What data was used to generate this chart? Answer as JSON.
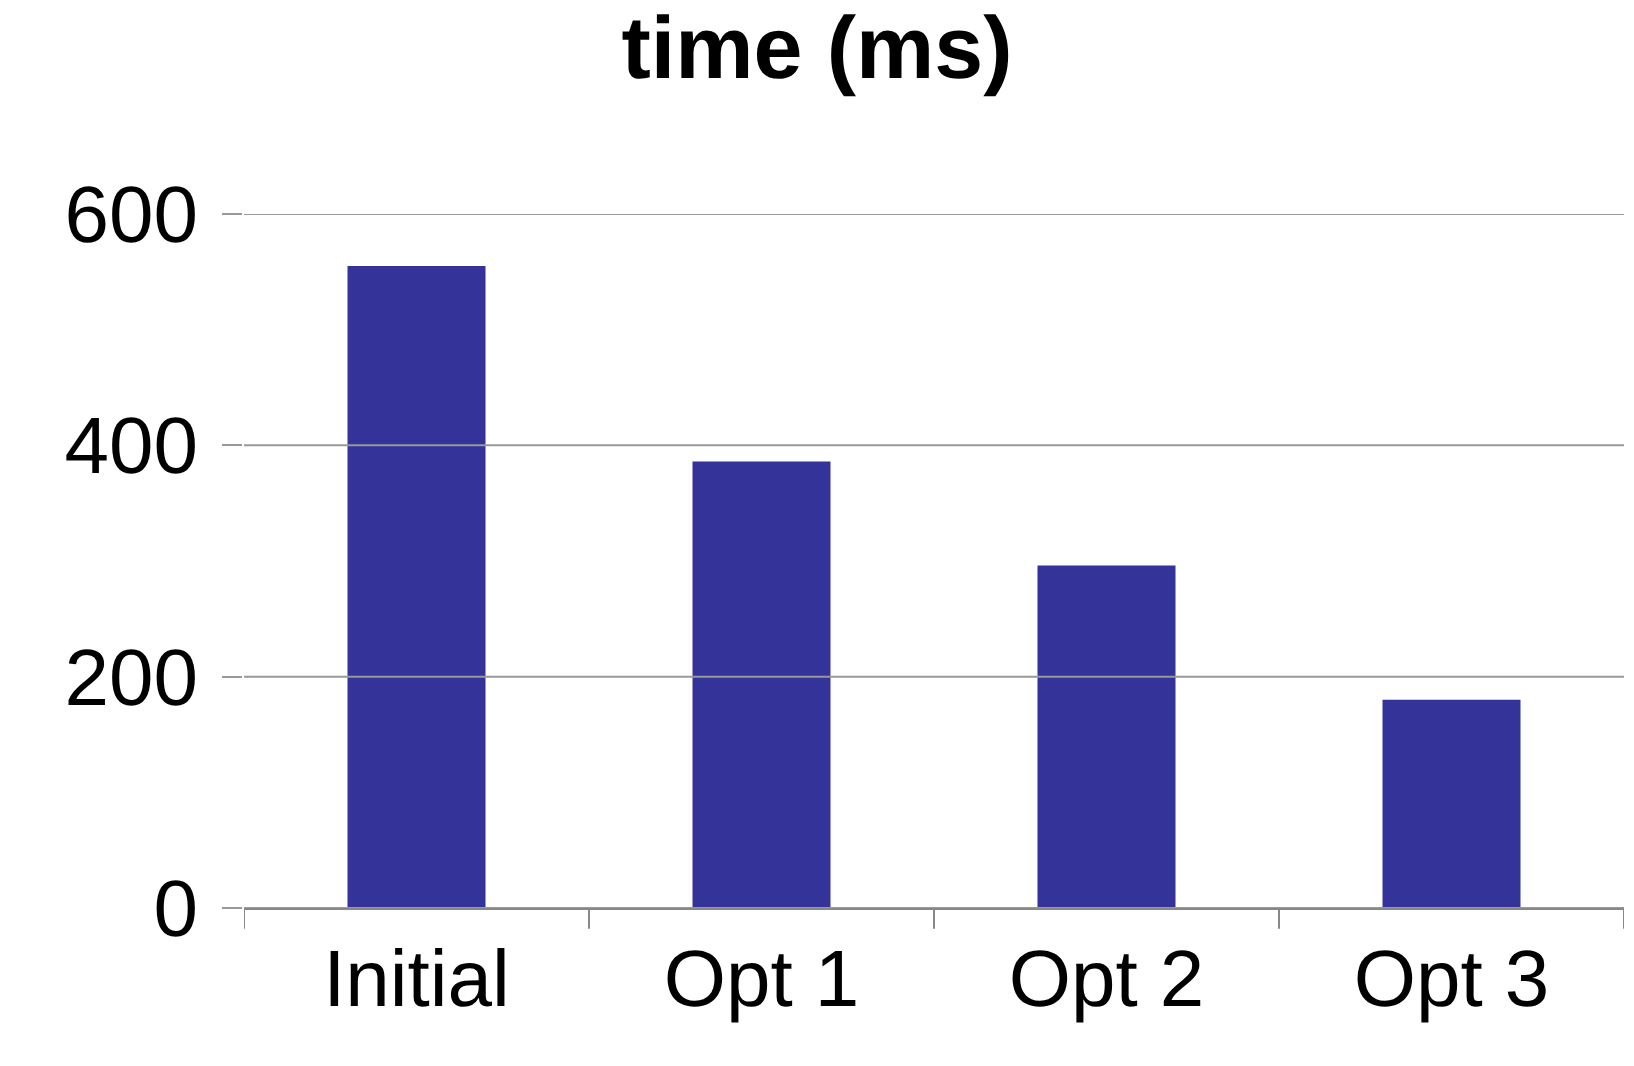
{
  "chart_data": {
    "type": "bar",
    "title": "time (ms)",
    "categories": [
      "Initial",
      "Opt 1",
      "Opt 2",
      "Opt 3"
    ],
    "values": [
      555,
      386,
      296,
      180
    ],
    "color": "#333399",
    "ylim": [
      0,
      600
    ],
    "yticks": [
      0,
      200,
      400,
      600
    ],
    "grid": "y"
  }
}
